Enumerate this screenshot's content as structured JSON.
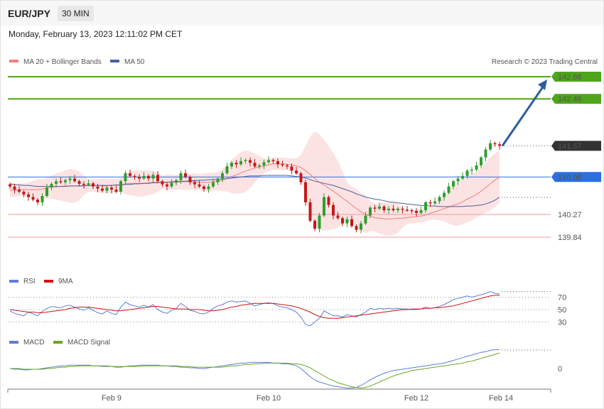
{
  "header": {
    "symbol": "EUR/JPY",
    "timeframe": "30 MIN",
    "datetime": "Monday, February 13, 2023 12:11:02 PM CET"
  },
  "colors": {
    "bull": "#2e9e2e",
    "bear": "#c21a1a",
    "ma20": "#f07d7d",
    "ma50": "#4a5f9e",
    "bands": "#fbdada",
    "resistance": "#4ea51b",
    "support": "#f29a9a",
    "pivot": "#2d6fe0",
    "current": "#333333",
    "rsi": "#5b7ed6",
    "rsi_ma": "#d01515",
    "macd": "#5b7ed6",
    "macd_signal": "#6aa822",
    "arrow": "#2d5e9e"
  },
  "legend_main": {
    "ma20_label": "MA 20 + Bollinger Bands",
    "ma50_label": "MA 50",
    "credit": "Research © 2023 Trading Central"
  },
  "legend_rsi": {
    "rsi_label": "RSI",
    "ma_label": "9MA"
  },
  "legend_macd": {
    "macd_label": "MACD",
    "signal_label": "MACD Signal"
  },
  "chart_data": [
    {
      "type": "candlestick",
      "x_ticks": [
        "Feb 9",
        "Feb 10",
        "Feb 12",
        "Feb 14"
      ],
      "ylim": [
        139.5,
        143.0
      ],
      "levels": [
        {
          "label": "142.88",
          "value": 142.88,
          "kind": "resistance"
        },
        {
          "label": "142.46",
          "value": 142.46,
          "kind": "resistance"
        },
        {
          "label": "141.57",
          "value": 141.57,
          "kind": "current"
        },
        {
          "label": "140.98",
          "value": 140.98,
          "kind": "pivot"
        },
        {
          "label": "140.27",
          "value": 140.27,
          "kind": "support"
        },
        {
          "label": "139.84",
          "value": 139.84,
          "kind": "support"
        }
      ],
      "close": [
        140.8,
        140.74,
        140.7,
        140.65,
        140.6,
        140.55,
        140.5,
        140.62,
        140.78,
        140.85,
        140.9,
        140.88,
        140.92,
        140.95,
        140.9,
        140.85,
        140.83,
        140.86,
        140.8,
        140.76,
        140.72,
        140.78,
        140.74,
        140.7,
        140.9,
        141.05,
        141.0,
        140.98,
        140.95,
        141.0,
        140.95,
        141.02,
        140.9,
        140.84,
        140.8,
        140.87,
        140.92,
        141.05,
        140.98,
        140.88,
        140.84,
        140.8,
        140.75,
        140.8,
        140.88,
        140.95,
        141.05,
        141.18,
        141.25,
        141.22,
        141.28,
        141.3,
        141.25,
        141.18,
        141.2,
        141.26,
        141.3,
        141.28,
        141.22,
        141.2,
        141.18,
        141.1,
        141.05,
        140.88,
        140.5,
        140.15,
        140.0,
        140.25,
        140.6,
        140.45,
        140.25,
        140.2,
        140.1,
        140.18,
        140.05,
        139.98,
        140.1,
        140.25,
        140.4,
        140.38,
        140.42,
        140.35,
        140.38,
        140.35,
        140.38,
        140.36,
        140.35,
        140.34,
        140.3,
        140.35,
        140.5,
        140.48,
        140.52,
        140.6,
        140.68,
        140.8,
        140.9,
        140.95,
        141.0,
        141.1,
        141.12,
        141.2,
        141.35,
        141.5,
        141.62,
        141.6,
        141.57
      ],
      "ma20": [
        140.72,
        140.73,
        140.74,
        140.74,
        140.74,
        140.74,
        140.74,
        140.75,
        140.77,
        140.79,
        140.8,
        140.8,
        140.81,
        140.81,
        140.81,
        140.81,
        140.82,
        140.82,
        140.82,
        140.82,
        140.81,
        140.81,
        140.82,
        140.82,
        140.83,
        140.85,
        140.86,
        140.86,
        140.86,
        140.86,
        140.87,
        140.88,
        140.88,
        140.88,
        140.88,
        140.88,
        140.88,
        140.89,
        140.89,
        140.89,
        140.89,
        140.88,
        140.88,
        140.88,
        140.89,
        140.9,
        140.92,
        140.95,
        140.99,
        141.02,
        141.06,
        141.09,
        141.12,
        141.15,
        141.17,
        141.19,
        141.21,
        141.23,
        141.23,
        141.23,
        141.22,
        141.21,
        141.19,
        141.16,
        141.1,
        141.03,
        140.95,
        140.88,
        140.83,
        140.77,
        140.71,
        140.65,
        140.58,
        140.52,
        140.45,
        140.38,
        140.32,
        140.27,
        140.24,
        140.21,
        140.2,
        140.19,
        140.18,
        140.19,
        140.2,
        140.2,
        140.21,
        140.22,
        140.23,
        140.24,
        140.26,
        140.29,
        140.32,
        140.35,
        140.38,
        140.41,
        140.44,
        140.47,
        140.51,
        140.56,
        140.6,
        140.65,
        140.71,
        140.78,
        140.85,
        140.92,
        140.98
      ],
      "ma50": [
        140.85,
        140.84,
        140.83,
        140.82,
        140.82,
        140.81,
        140.8,
        140.8,
        140.8,
        140.8,
        140.8,
        140.8,
        140.8,
        140.81,
        140.81,
        140.81,
        140.81,
        140.82,
        140.82,
        140.82,
        140.82,
        140.82,
        140.82,
        140.83,
        140.83,
        140.84,
        140.84,
        140.85,
        140.85,
        140.86,
        140.86,
        140.87,
        140.87,
        140.88,
        140.88,
        140.89,
        140.89,
        140.9,
        140.9,
        140.91,
        140.91,
        140.92,
        140.92,
        140.93,
        140.93,
        140.94,
        140.94,
        140.95,
        140.96,
        140.97,
        140.98,
        140.99,
        141.0,
        141.0,
        141.0,
        141.01,
        141.01,
        141.01,
        141.01,
        141.01,
        141.01,
        141.0,
        140.99,
        140.98,
        140.96,
        140.93,
        140.9,
        140.88,
        140.86,
        140.84,
        140.82,
        140.79,
        140.76,
        140.73,
        140.7,
        140.66,
        140.63,
        140.6,
        140.58,
        140.56,
        140.55,
        140.53,
        140.51,
        140.5,
        140.49,
        140.48,
        140.47,
        140.46,
        140.45,
        140.44,
        140.44,
        140.43,
        140.43,
        140.42,
        140.42,
        140.42,
        140.42,
        140.42,
        140.42,
        140.43,
        140.43,
        140.44,
        140.45,
        140.47,
        140.5,
        140.54,
        140.6
      ]
    },
    {
      "type": "line",
      "name": "RSI",
      "y_ticks": [
        70,
        50,
        30
      ],
      "ylim": [
        10,
        90
      ],
      "series": [
        {
          "name": "RSI",
          "values": [
            48,
            44,
            42,
            40,
            46,
            43,
            40,
            47,
            52,
            55,
            54,
            53,
            56,
            57,
            54,
            51,
            49,
            53,
            49,
            45,
            43,
            48,
            44,
            42,
            54,
            62,
            58,
            56,
            54,
            57,
            54,
            58,
            50,
            46,
            44,
            49,
            52,
            60,
            55,
            49,
            47,
            44,
            43,
            46,
            52,
            56,
            58,
            62,
            64,
            62,
            63,
            64,
            60,
            56,
            58,
            60,
            61,
            60,
            56,
            54,
            53,
            50,
            46,
            38,
            26,
            24,
            30,
            36,
            48,
            44,
            40,
            40,
            38,
            42,
            40,
            38,
            42,
            46,
            52,
            50,
            52,
            51,
            52,
            51,
            52,
            51,
            51,
            50,
            50,
            51,
            54,
            52,
            53,
            55,
            58,
            62,
            66,
            68,
            70,
            72,
            70,
            72,
            74,
            76,
            79,
            76,
            75
          ]
        },
        {
          "name": "9MA",
          "values": [
            50,
            49,
            48,
            47,
            46,
            46,
            45,
            45,
            46,
            47,
            48,
            49,
            50,
            52,
            53,
            54,
            54,
            54,
            53,
            52,
            51,
            50,
            49,
            48,
            48,
            49,
            50,
            51,
            52,
            53,
            54,
            55,
            55,
            54,
            53,
            52,
            51,
            51,
            51,
            50,
            50,
            50,
            49,
            48,
            48,
            49,
            50,
            52,
            54,
            55,
            57,
            58,
            59,
            60,
            60,
            60,
            60,
            60,
            59,
            58,
            57,
            56,
            54,
            52,
            49,
            46,
            42,
            39,
            37,
            36,
            36,
            36,
            37,
            38,
            39,
            40,
            41,
            42,
            43,
            44,
            45,
            46,
            47,
            48,
            49,
            50,
            50,
            51,
            51,
            51,
            52,
            52,
            53,
            53,
            54,
            55,
            56,
            58,
            60,
            62,
            64,
            66,
            68,
            70,
            72,
            73,
            73
          ]
        }
      ]
    },
    {
      "type": "line",
      "name": "MACD",
      "y_ticks": [
        0
      ],
      "ylim": [
        -0.35,
        0.42
      ],
      "series": [
        {
          "name": "MACD",
          "values": [
            0.0,
            -0.01,
            -0.01,
            -0.02,
            -0.02,
            -0.01,
            -0.01,
            0.0,
            0.01,
            0.02,
            0.03,
            0.04,
            0.04,
            0.05,
            0.05,
            0.05,
            0.05,
            0.05,
            0.04,
            0.04,
            0.03,
            0.03,
            0.03,
            0.02,
            0.02,
            0.03,
            0.04,
            0.04,
            0.05,
            0.05,
            0.05,
            0.05,
            0.05,
            0.04,
            0.04,
            0.03,
            0.03,
            0.02,
            0.02,
            0.01,
            0.01,
            0.0,
            0.0,
            0.01,
            0.02,
            0.03,
            0.04,
            0.05,
            0.06,
            0.07,
            0.08,
            0.08,
            0.09,
            0.09,
            0.09,
            0.09,
            0.09,
            0.08,
            0.08,
            0.07,
            0.07,
            0.06,
            0.04,
            0.0,
            -0.06,
            -0.12,
            -0.17,
            -0.2,
            -0.22,
            -0.24,
            -0.26,
            -0.27,
            -0.28,
            -0.29,
            -0.29,
            -0.28,
            -0.25,
            -0.21,
            -0.17,
            -0.13,
            -0.1,
            -0.07,
            -0.05,
            -0.03,
            -0.02,
            -0.01,
            0.0,
            0.01,
            0.02,
            0.03,
            0.04,
            0.05,
            0.06,
            0.07,
            0.08,
            0.1,
            0.12,
            0.14,
            0.16,
            0.18,
            0.2,
            0.22,
            0.24,
            0.25,
            0.27,
            0.28,
            0.28
          ]
        },
        {
          "name": "MACD Signal",
          "values": [
            0.0,
            0.0,
            0.0,
            -0.01,
            -0.01,
            -0.01,
            -0.01,
            -0.01,
            0.0,
            0.0,
            0.01,
            0.02,
            0.02,
            0.03,
            0.03,
            0.04,
            0.04,
            0.04,
            0.04,
            0.04,
            0.04,
            0.04,
            0.03,
            0.03,
            0.03,
            0.03,
            0.03,
            0.03,
            0.03,
            0.04,
            0.04,
            0.04,
            0.04,
            0.04,
            0.04,
            0.04,
            0.04,
            0.03,
            0.03,
            0.03,
            0.02,
            0.02,
            0.02,
            0.02,
            0.02,
            0.02,
            0.02,
            0.03,
            0.04,
            0.04,
            0.05,
            0.06,
            0.06,
            0.07,
            0.07,
            0.08,
            0.08,
            0.08,
            0.08,
            0.08,
            0.08,
            0.07,
            0.07,
            0.06,
            0.04,
            0.01,
            -0.03,
            -0.07,
            -0.11,
            -0.15,
            -0.18,
            -0.21,
            -0.23,
            -0.25,
            -0.27,
            -0.28,
            -0.29,
            -0.28,
            -0.26,
            -0.23,
            -0.2,
            -0.17,
            -0.14,
            -0.11,
            -0.09,
            -0.07,
            -0.05,
            -0.03,
            -0.02,
            -0.01,
            0.0,
            0.01,
            0.02,
            0.03,
            0.04,
            0.05,
            0.06,
            0.07,
            0.08,
            0.1,
            0.11,
            0.13,
            0.15,
            0.17,
            0.19,
            0.21,
            0.23
          ]
        }
      ]
    }
  ]
}
